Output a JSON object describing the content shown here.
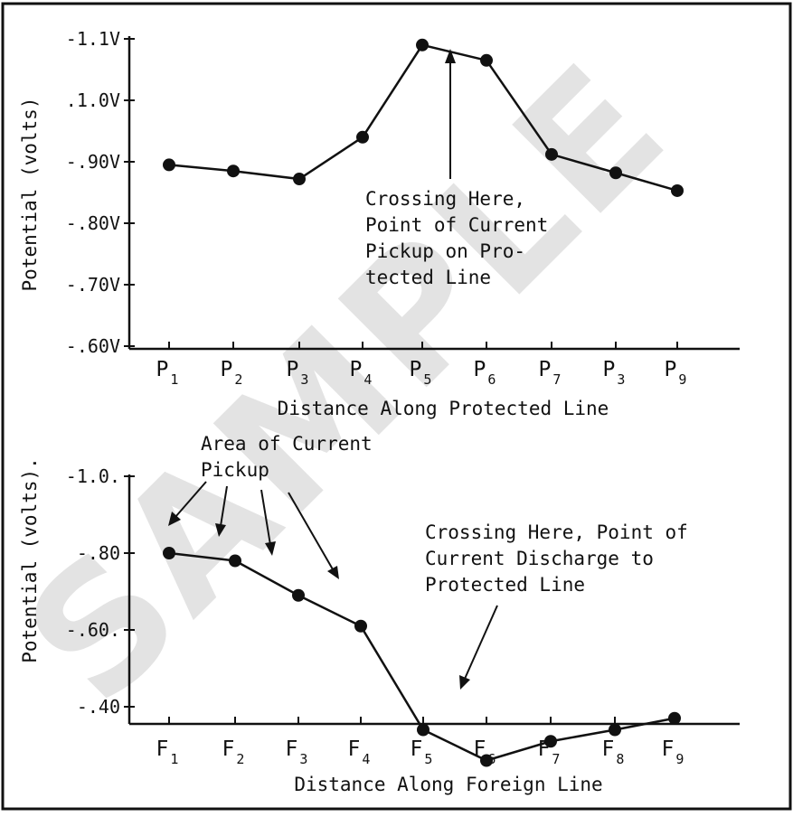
{
  "watermark": "SAMPLE",
  "chart_data": [
    {
      "type": "line",
      "xlabel": "Distance Along Protected Line",
      "ylabel": "Potential (volts)",
      "categories": [
        {
          "letter": "P",
          "sub": "1"
        },
        {
          "letter": "P",
          "sub": "2"
        },
        {
          "letter": "P",
          "sub": "3"
        },
        {
          "letter": "P",
          "sub": "4"
        },
        {
          "letter": "P",
          "sub": "5"
        },
        {
          "letter": "P",
          "sub": "6"
        },
        {
          "letter": "P",
          "sub": "7"
        },
        {
          "letter": "P",
          "sub": "3"
        },
        {
          "letter": "P",
          "sub": "9"
        }
      ],
      "values": [
        -0.895,
        -0.885,
        -0.872,
        -0.94,
        -1.09,
        -1.065,
        -0.912,
        -0.882,
        -0.853
      ],
      "ylim": [
        -0.6,
        -1.1
      ],
      "ytick_values": [
        -1.1,
        -1.0,
        -0.9,
        -0.8,
        -0.7,
        -0.6
      ],
      "ytick_labels": [
        "-1.1V",
        ".1.0V",
        "-.90V",
        "-.80V",
        "-.70V",
        "-.60V"
      ],
      "annotation": {
        "lines": [
          "Crossing Here,",
          "Point of Current",
          "Pickup on Pro-",
          "tected Line"
        ]
      },
      "grid": false
    },
    {
      "type": "line",
      "xlabel": "Distance Along Foreign Line",
      "ylabel": "Potential (volts).",
      "categories": [
        {
          "letter": "F",
          "sub": "1"
        },
        {
          "letter": "F",
          "sub": "2"
        },
        {
          "letter": "F",
          "sub": "3"
        },
        {
          "letter": "F",
          "sub": "4"
        },
        {
          "letter": "F",
          "sub": "5"
        },
        {
          "letter": "F",
          "sub": "6"
        },
        {
          "letter": "F",
          "sub": "7"
        },
        {
          "letter": "F",
          "sub": "8"
        },
        {
          "letter": "F",
          "sub": "9"
        }
      ],
      "values": [
        -0.8,
        -0.78,
        -0.69,
        -0.61,
        -0.34,
        -0.26,
        -0.31,
        -0.34,
        -0.37
      ],
      "ylim": [
        -0.2,
        -1.0
      ],
      "ytick_values": [
        -1.0,
        -0.8,
        -0.6,
        -0.4
      ],
      "ytick_labels": [
        "-1.0.",
        "-.80",
        "-.60.",
        "-.40"
      ],
      "annotations": [
        {
          "lines": [
            "Area of Current",
            "Pickup"
          ]
        },
        {
          "lines": [
            "Crossing Here, Point of",
            "Current Discharge to",
            "Protected Line"
          ]
        }
      ],
      "grid": false
    }
  ]
}
